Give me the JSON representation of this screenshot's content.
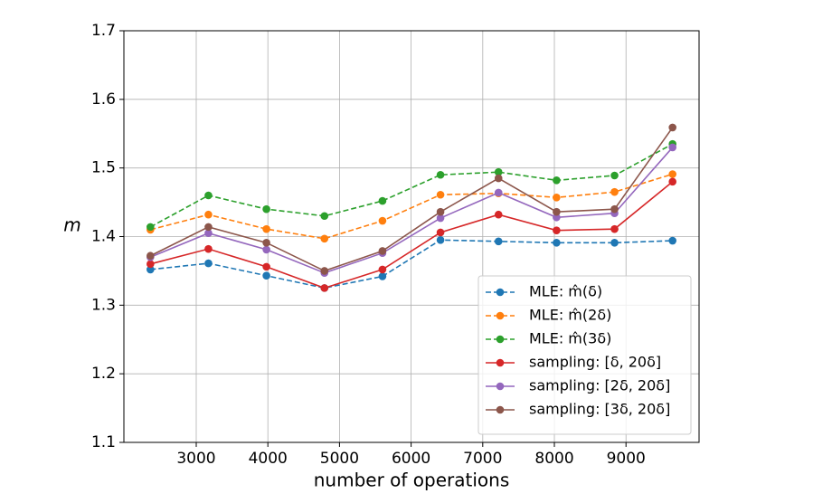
{
  "chart_data": {
    "type": "line",
    "x_label": "number of operations",
    "y_label": "m",
    "x": [
      2360,
      3170,
      3980,
      4790,
      5600,
      6410,
      7220,
      8030,
      8840,
      9650
    ],
    "xlim": [
      1990,
      10020
    ],
    "xticks": [
      3000,
      4000,
      5000,
      6000,
      7000,
      8000,
      9000
    ],
    "ylim": [
      1.1,
      1.7
    ],
    "yticks": [
      1.1,
      1.2,
      1.3,
      1.4,
      1.5,
      1.6,
      1.7
    ],
    "grid": true,
    "legend": "lower right",
    "series": [
      {
        "name": "MLE: m̂(δ)",
        "color": "#1f77b4",
        "linestyle": "dashed",
        "values": [
          1.352,
          1.361,
          1.343,
          1.325,
          1.342,
          1.395,
          1.393,
          1.391,
          1.391,
          1.394
        ]
      },
      {
        "name": "MLE: m̂(2δ)",
        "color": "#ff7f0e",
        "linestyle": "dashed",
        "values": [
          1.41,
          1.432,
          1.411,
          1.397,
          1.423,
          1.461,
          1.463,
          1.457,
          1.465,
          1.491
        ]
      },
      {
        "name": "MLE: m̂(3δ)",
        "color": "#2ca02c",
        "linestyle": "dashed",
        "values": [
          1.414,
          1.46,
          1.44,
          1.43,
          1.452,
          1.49,
          1.494,
          1.482,
          1.489,
          1.535
        ]
      },
      {
        "name": "sampling: [δ, 20δ]",
        "color": "#d62728",
        "linestyle": "solid",
        "values": [
          1.36,
          1.382,
          1.356,
          1.325,
          1.352,
          1.406,
          1.432,
          1.409,
          1.411,
          1.48
        ]
      },
      {
        "name": "sampling: [2δ, 20δ]",
        "color": "#9467bd",
        "linestyle": "solid",
        "values": [
          1.37,
          1.405,
          1.381,
          1.347,
          1.376,
          1.427,
          1.464,
          1.428,
          1.434,
          1.53
        ]
      },
      {
        "name": "sampling: [3δ, 20δ]",
        "color": "#8c564b",
        "linestyle": "solid",
        "values": [
          1.372,
          1.414,
          1.391,
          1.35,
          1.379,
          1.436,
          1.485,
          1.436,
          1.44,
          1.559
        ]
      }
    ]
  }
}
